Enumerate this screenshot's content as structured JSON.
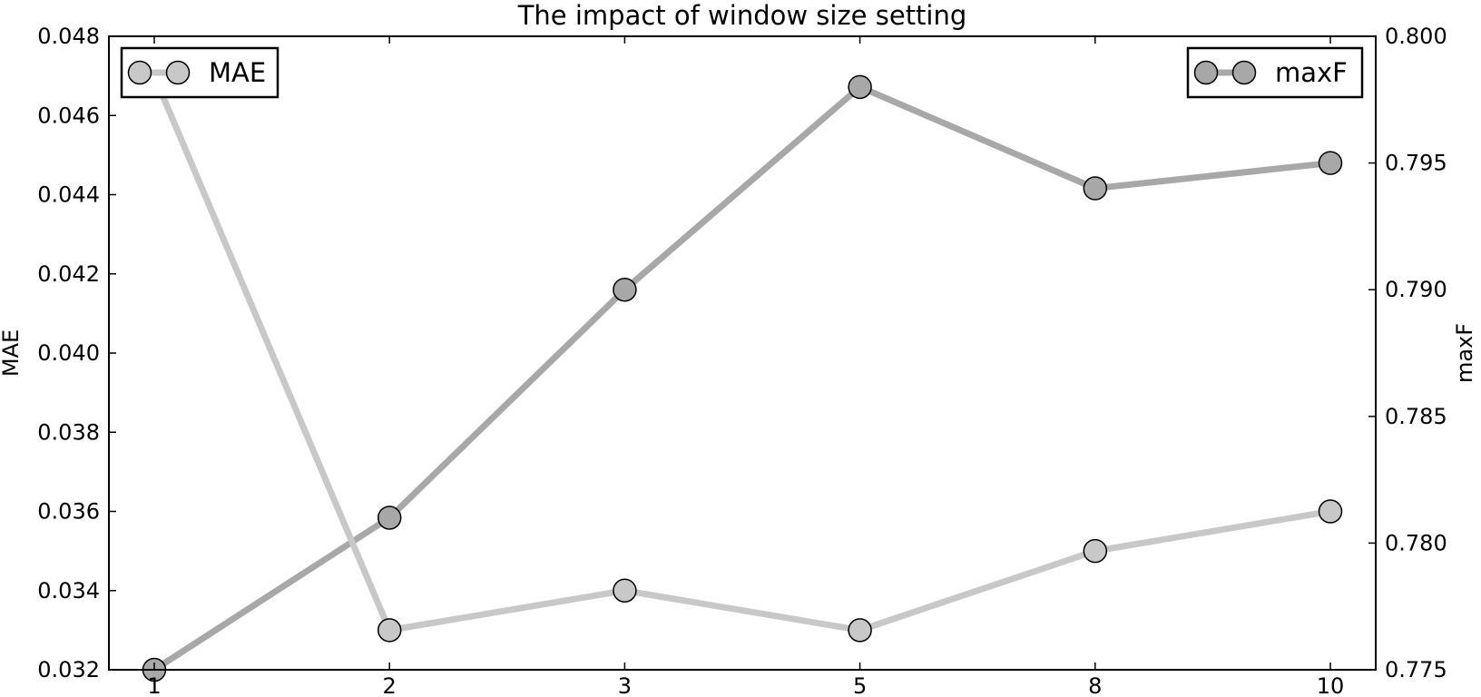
{
  "chart_data": {
    "type": "line",
    "title": "The impact of window size setting",
    "categories": [
      "1",
      "2",
      "3",
      "5",
      "8",
      "10"
    ],
    "left_axis": {
      "label": "MAE",
      "ylim": [
        0.032,
        0.048
      ],
      "ticks": [
        "0.032",
        "0.034",
        "0.036",
        "0.038",
        "0.040",
        "0.042",
        "0.044",
        "0.046",
        "0.048"
      ]
    },
    "right_axis": {
      "label": "maxF",
      "ylim": [
        0.775,
        0.8
      ],
      "ticks": [
        "0.775",
        "0.780",
        "0.785",
        "0.790",
        "0.795",
        "0.800"
      ]
    },
    "series": [
      {
        "name": "MAE",
        "axis": "left",
        "color": "#c8c8c8",
        "values": [
          0.047,
          0.033,
          0.034,
          0.033,
          0.035,
          0.036
        ]
      },
      {
        "name": "maxF",
        "axis": "right",
        "color": "#a8a8a8",
        "values": [
          0.775,
          0.781,
          0.79,
          0.798,
          0.794,
          0.795
        ]
      }
    ],
    "legend": [
      {
        "name": "MAE",
        "placement": "top-left"
      },
      {
        "name": "maxF",
        "placement": "top-right"
      }
    ],
    "grid": false
  }
}
